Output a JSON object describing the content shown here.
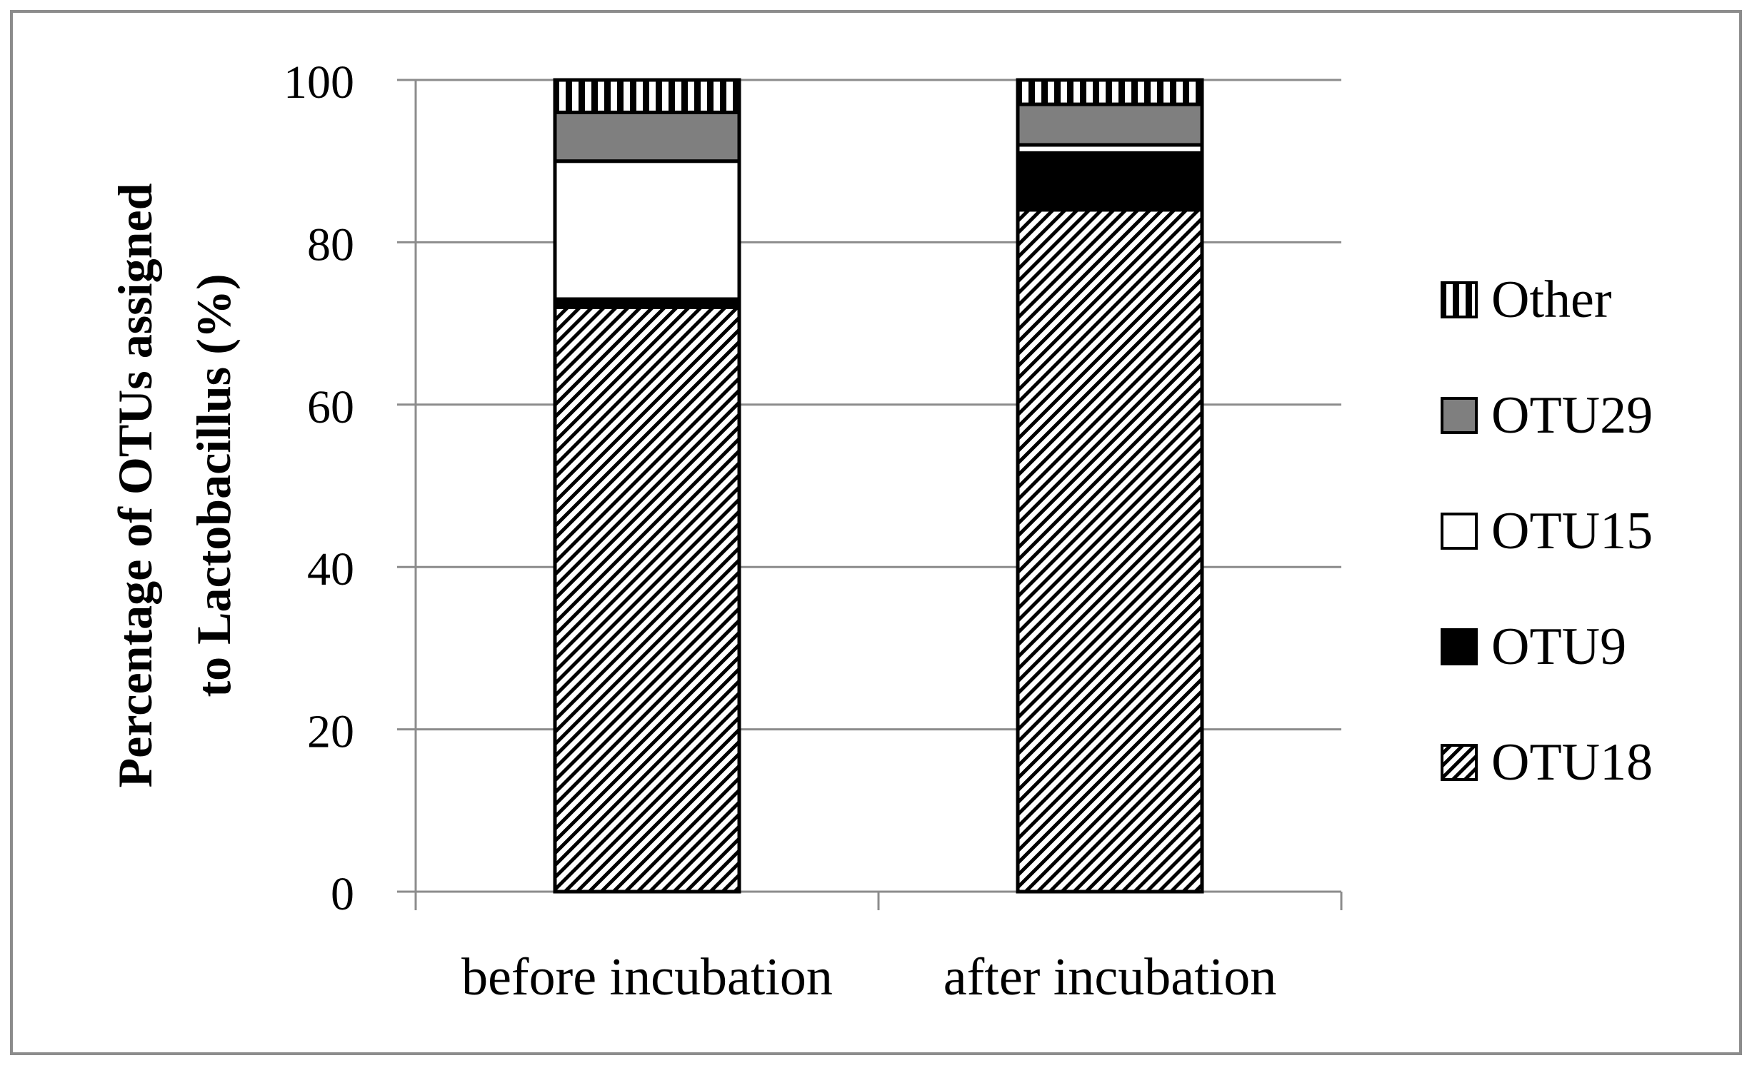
{
  "chart_data": {
    "type": "bar",
    "stacked": true,
    "categories": [
      "before incubation",
      "after incubation"
    ],
    "series": [
      {
        "name": "OTU18",
        "values": [
          72,
          84
        ],
        "pattern": "diagonal-hatch"
      },
      {
        "name": "OTU9",
        "values": [
          1,
          7
        ],
        "pattern": "solid-black"
      },
      {
        "name": "OTU15",
        "values": [
          17,
          1
        ],
        "pattern": "white"
      },
      {
        "name": "OTU29",
        "values": [
          6,
          5
        ],
        "pattern": "solid-gray"
      },
      {
        "name": "Other",
        "values": [
          4,
          3
        ],
        "pattern": "vertical-stripes"
      }
    ],
    "title": "",
    "xlabel": "",
    "ylabel": "Percentage of OTUs assigned to Lactobacillus (%)",
    "ylabel_lines": [
      "Percentage of OTUs assigned",
      "to Lactobacillus (%)"
    ],
    "ylim": [
      0,
      100
    ],
    "yticks": [
      "0",
      "20",
      "40",
      "60",
      "80",
      "100"
    ],
    "grid": true,
    "legend_position": "right",
    "legend_order": [
      "Other",
      "OTU29",
      "OTU15",
      "OTU9",
      "OTU18"
    ],
    "colors": {
      "gray_fill": "#7f7f7f",
      "black_fill": "#000000",
      "grid": "#8c8c8c",
      "frame": "#8c8c8c"
    }
  }
}
